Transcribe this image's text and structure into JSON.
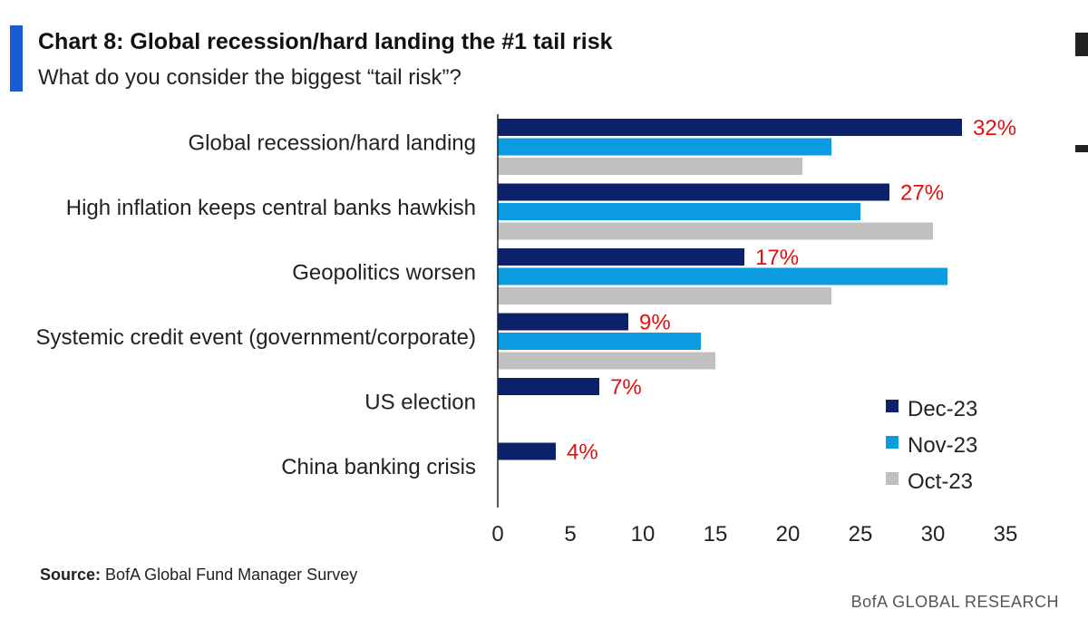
{
  "header": {
    "title": "Chart 8: Global recession/hard landing the #1 tail risk",
    "subtitle": "What do you consider the biggest “tail risk”?"
  },
  "footer": {
    "source_key": "Source:",
    "source_text": "BofA Global Fund Manager Survey",
    "brand": "BofA GLOBAL RESEARCH"
  },
  "colors": {
    "accent": "#1a5bd1",
    "dec": "#0d2169",
    "nov": "#0a9be0",
    "oct": "#c0c0c0",
    "label_red": "#e01010"
  },
  "chart_data": {
    "type": "bar",
    "orientation": "horizontal",
    "title": "Chart 8: Global recession/hard landing the #1 tail risk",
    "subtitle": "What do you consider the biggest “tail risk”?",
    "categories": [
      "Global recession/hard landing",
      "High inflation keeps central banks hawkish",
      "Geopolitics worsen",
      "Systemic credit event (government/corporate)",
      "US election",
      "China banking crisis"
    ],
    "series": [
      {
        "name": "Dec-23",
        "color": "#0d2169",
        "values": [
          32,
          27,
          17,
          9,
          7,
          4
        ],
        "labels": [
          "32%",
          "27%",
          "17%",
          "9%",
          "7%",
          "4%"
        ]
      },
      {
        "name": "Nov-23",
        "color": "#0a9be0",
        "values": [
          23,
          25,
          31,
          14,
          0,
          0
        ]
      },
      {
        "name": "Oct-23",
        "color": "#c0c0c0",
        "values": [
          21,
          30,
          23,
          15,
          0,
          0
        ]
      }
    ],
    "xlim": [
      0,
      35
    ],
    "xticks": [
      0,
      5,
      10,
      15,
      20,
      25,
      30,
      35
    ],
    "xlabel": "",
    "ylabel": "",
    "legend": "bottom-right"
  }
}
